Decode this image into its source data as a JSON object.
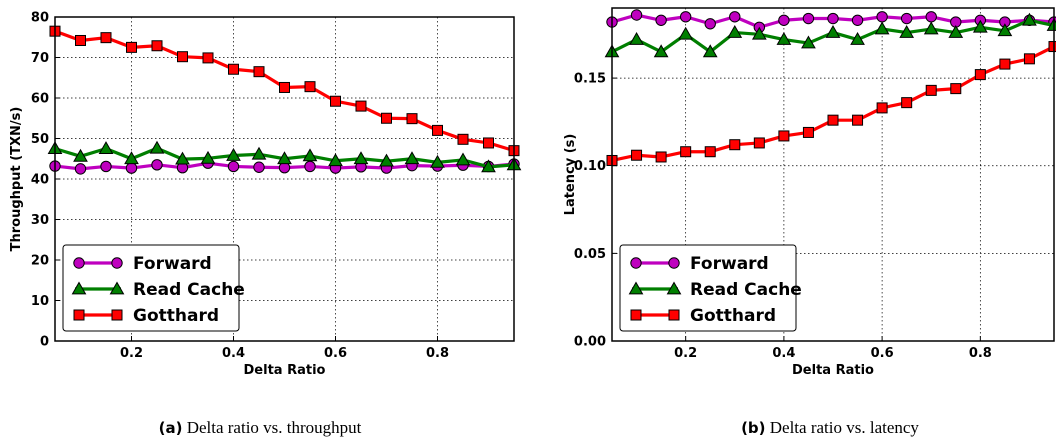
{
  "chart_data": [
    {
      "type": "line",
      "caption_label": "(a)",
      "caption_text": "Delta ratio vs. throughput",
      "xlabel": "Delta Ratio",
      "ylabel": "Throughput (TXN/s)",
      "xlim": [
        0.05,
        0.95
      ],
      "ylim": [
        0,
        80
      ],
      "xticks": [
        "0.2",
        "0.4",
        "0.6",
        "0.8"
      ],
      "yticks": [
        "0",
        "10",
        "20",
        "30",
        "40",
        "50",
        "60",
        "70",
        "80"
      ],
      "grid": true,
      "legend_position": "lower-left",
      "x": [
        0.05,
        0.1,
        0.15,
        0.2,
        0.25,
        0.3,
        0.35,
        0.4,
        0.45,
        0.5,
        0.55,
        0.6,
        0.65,
        0.7,
        0.75,
        0.8,
        0.85,
        0.9,
        0.95
      ],
      "series": [
        {
          "name": "Forward",
          "marker": "circle",
          "color": "#bf00bf",
          "values": [
            43.2,
            42.5,
            43.1,
            42.7,
            43.5,
            42.8,
            43.9,
            43.1,
            42.9,
            42.8,
            43.1,
            42.7,
            43.0,
            42.7,
            43.3,
            43.2,
            43.4,
            43.1,
            43.7
          ]
        },
        {
          "name": "Read Cache",
          "marker": "triangle",
          "color": "#007f00",
          "values": [
            47.5,
            45.6,
            47.5,
            45.0,
            47.6,
            44.9,
            45.1,
            45.8,
            46.1,
            45.0,
            45.7,
            44.5,
            45.0,
            44.4,
            45.0,
            44.1,
            44.7,
            43.0,
            43.5
          ]
        },
        {
          "name": "Gotthard",
          "marker": "square",
          "color": "#ff0000",
          "values": [
            76.5,
            74.2,
            74.9,
            72.5,
            72.9,
            70.2,
            69.9,
            67.1,
            66.5,
            62.6,
            62.8,
            59.2,
            58.0,
            55.0,
            54.9,
            52.0,
            49.8,
            48.9,
            47.0
          ]
        }
      ]
    },
    {
      "type": "line",
      "caption_label": "(b)",
      "caption_text": "Delta ratio vs. latency",
      "xlabel": "Delta Ratio",
      "ylabel": "Latency (s)",
      "xlim": [
        0.05,
        0.95
      ],
      "ylim": [
        0,
        0.19
      ],
      "xticks": [
        "0.2",
        "0.4",
        "0.6",
        "0.8"
      ],
      "yticks": [
        "0.00",
        "0.05",
        "0.10",
        "0.15"
      ],
      "grid": true,
      "legend_position": "lower-left",
      "x": [
        0.05,
        0.1,
        0.15,
        0.2,
        0.25,
        0.3,
        0.35,
        0.4,
        0.45,
        0.5,
        0.55,
        0.6,
        0.65,
        0.7,
        0.75,
        0.8,
        0.85,
        0.9,
        0.95
      ],
      "series": [
        {
          "name": "Forward",
          "marker": "circle",
          "color": "#bf00bf",
          "values": [
            0.182,
            0.186,
            0.183,
            0.185,
            0.181,
            0.185,
            0.179,
            0.183,
            0.184,
            0.184,
            0.183,
            0.185,
            0.184,
            0.185,
            0.182,
            0.183,
            0.182,
            0.183,
            0.182
          ]
        },
        {
          "name": "Read Cache",
          "marker": "triangle",
          "color": "#007f00",
          "values": [
            0.165,
            0.172,
            0.165,
            0.175,
            0.165,
            0.176,
            0.175,
            0.172,
            0.17,
            0.176,
            0.172,
            0.178,
            0.176,
            0.178,
            0.176,
            0.179,
            0.177,
            0.183,
            0.18
          ]
        },
        {
          "name": "Gotthard",
          "marker": "square",
          "color": "#ff0000",
          "values": [
            0.103,
            0.106,
            0.105,
            0.108,
            0.108,
            0.112,
            0.113,
            0.117,
            0.119,
            0.126,
            0.126,
            0.133,
            0.136,
            0.143,
            0.144,
            0.152,
            0.158,
            0.161,
            0.168
          ]
        }
      ]
    }
  ]
}
